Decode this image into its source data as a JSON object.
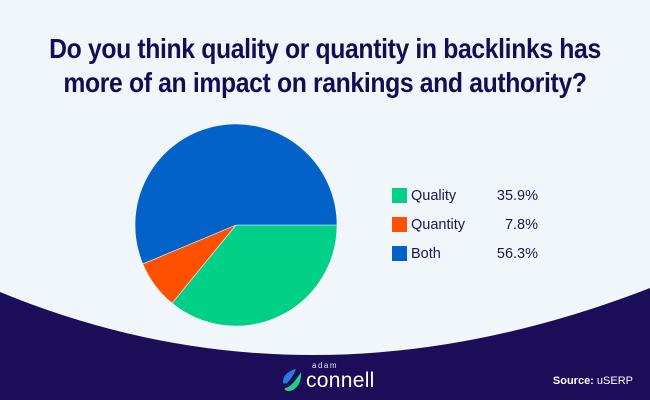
{
  "title": {
    "line1": "Do you think quality or quantity in backlinks has",
    "line2": "more of an impact on rankings and authority?"
  },
  "colors": {
    "background": "#f0f6fa",
    "footer_band": "#1b0d58",
    "title_text": "#140c55",
    "quality": "#00cf87",
    "quantity": "#ff5000",
    "both": "#0362c7"
  },
  "legend": [
    {
      "label": "Quality",
      "value": "35.9%",
      "color": "#00cf87"
    },
    {
      "label": "Quantity",
      "value": "7.8%",
      "color": "#ff5000"
    },
    {
      "label": "Both",
      "value": "56.3%",
      "color": "#0362c7"
    }
  ],
  "footer": {
    "logo_small": "adam",
    "logo_big": "connell",
    "source_label": "Source:",
    "source_value": " uSERP"
  },
  "chart_data": {
    "type": "pie",
    "title": "Do you think quality or quantity in backlinks has more of an impact on rankings and authority?",
    "categories": [
      "Quality",
      "Quantity",
      "Both"
    ],
    "values": [
      35.9,
      7.8,
      56.3
    ],
    "colors": [
      "#00cf87",
      "#ff5000",
      "#0362c7"
    ],
    "legend_position": "right",
    "start_angle": "3 o'clock, clockwise",
    "source": "uSERP"
  }
}
